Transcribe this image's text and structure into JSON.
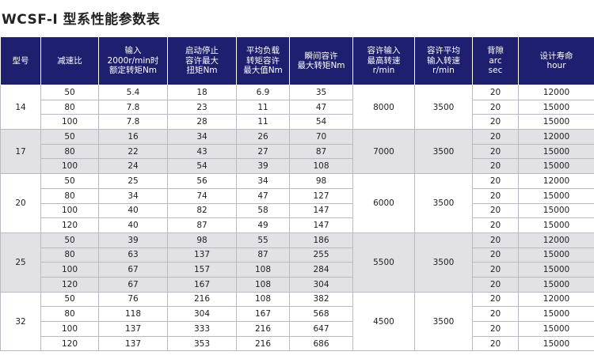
{
  "title": "WCSF-I 型系性能参数表",
  "headers": [
    [
      "型号"
    ],
    [
      "减速比"
    ],
    [
      "输入",
      "2000r/min时",
      "额定转矩Nm"
    ],
    [
      "启动停止",
      "容许最大",
      "扭矩Nm"
    ],
    [
      "平均负载",
      "转矩容许",
      "最大值Nm"
    ],
    [
      "瞬间容许",
      "最大转矩Nm"
    ],
    [
      "容许输入",
      "最高转速",
      "r/min"
    ],
    [
      "容许平均",
      "输入转速",
      "r/min"
    ],
    [
      "背隙",
      "arc",
      "sec"
    ],
    [
      "设计寿命",
      "hour"
    ]
  ],
  "groups": [
    {
      "model": "14",
      "max_speed": "8000",
      "avg_speed": "3500",
      "rows": [
        {
          "ratio": "50",
          "rated": "5.4",
          "startstop": "18",
          "avg_load": "6.9",
          "momentary": "35",
          "backlash": "20",
          "life": "12000"
        },
        {
          "ratio": "80",
          "rated": "7.8",
          "startstop": "23",
          "avg_load": "11",
          "momentary": "47",
          "backlash": "20",
          "life": "15000"
        },
        {
          "ratio": "100",
          "rated": "7.8",
          "startstop": "28",
          "avg_load": "11",
          "momentary": "54",
          "backlash": "20",
          "life": "15000"
        }
      ]
    },
    {
      "model": "17",
      "max_speed": "7000",
      "avg_speed": "3500",
      "rows": [
        {
          "ratio": "50",
          "rated": "16",
          "startstop": "34",
          "avg_load": "26",
          "momentary": "70",
          "backlash": "20",
          "life": "12000"
        },
        {
          "ratio": "80",
          "rated": "22",
          "startstop": "43",
          "avg_load": "27",
          "momentary": "87",
          "backlash": "20",
          "life": "15000"
        },
        {
          "ratio": "100",
          "rated": "24",
          "startstop": "54",
          "avg_load": "39",
          "momentary": "108",
          "backlash": "20",
          "life": "15000"
        }
      ]
    },
    {
      "model": "20",
      "max_speed": "6000",
      "avg_speed": "3500",
      "rows": [
        {
          "ratio": "50",
          "rated": "25",
          "startstop": "56",
          "avg_load": "34",
          "momentary": "98",
          "backlash": "20",
          "life": "12000"
        },
        {
          "ratio": "80",
          "rated": "34",
          "startstop": "74",
          "avg_load": "47",
          "momentary": "127",
          "backlash": "20",
          "life": "15000"
        },
        {
          "ratio": "100",
          "rated": "40",
          "startstop": "82",
          "avg_load": "58",
          "momentary": "147",
          "backlash": "20",
          "life": "15000"
        },
        {
          "ratio": "120",
          "rated": "40",
          "startstop": "87",
          "avg_load": "49",
          "momentary": "147",
          "backlash": "20",
          "life": "15000"
        }
      ]
    },
    {
      "model": "25",
      "max_speed": "5500",
      "avg_speed": "3500",
      "rows": [
        {
          "ratio": "50",
          "rated": "39",
          "startstop": "98",
          "avg_load": "55",
          "momentary": "186",
          "backlash": "20",
          "life": "12000"
        },
        {
          "ratio": "80",
          "rated": "63",
          "startstop": "137",
          "avg_load": "87",
          "momentary": "255",
          "backlash": "20",
          "life": "15000"
        },
        {
          "ratio": "100",
          "rated": "67",
          "startstop": "157",
          "avg_load": "108",
          "momentary": "284",
          "backlash": "20",
          "life": "15000"
        },
        {
          "ratio": "120",
          "rated": "67",
          "startstop": "167",
          "avg_load": "108",
          "momentary": "304",
          "backlash": "20",
          "life": "15000"
        }
      ]
    },
    {
      "model": "32",
      "max_speed": "4500",
      "avg_speed": "3500",
      "rows": [
        {
          "ratio": "50",
          "rated": "76",
          "startstop": "216",
          "avg_load": "108",
          "momentary": "382",
          "backlash": "20",
          "life": "12000"
        },
        {
          "ratio": "80",
          "rated": "118",
          "startstop": "304",
          "avg_load": "167",
          "momentary": "568",
          "backlash": "20",
          "life": "15000"
        },
        {
          "ratio": "100",
          "rated": "137",
          "startstop": "333",
          "avg_load": "216",
          "momentary": "647",
          "backlash": "20",
          "life": "15000"
        },
        {
          "ratio": "120",
          "rated": "137",
          "startstop": "353",
          "avg_load": "216",
          "momentary": "686",
          "backlash": "20",
          "life": "15000"
        }
      ]
    }
  ]
}
